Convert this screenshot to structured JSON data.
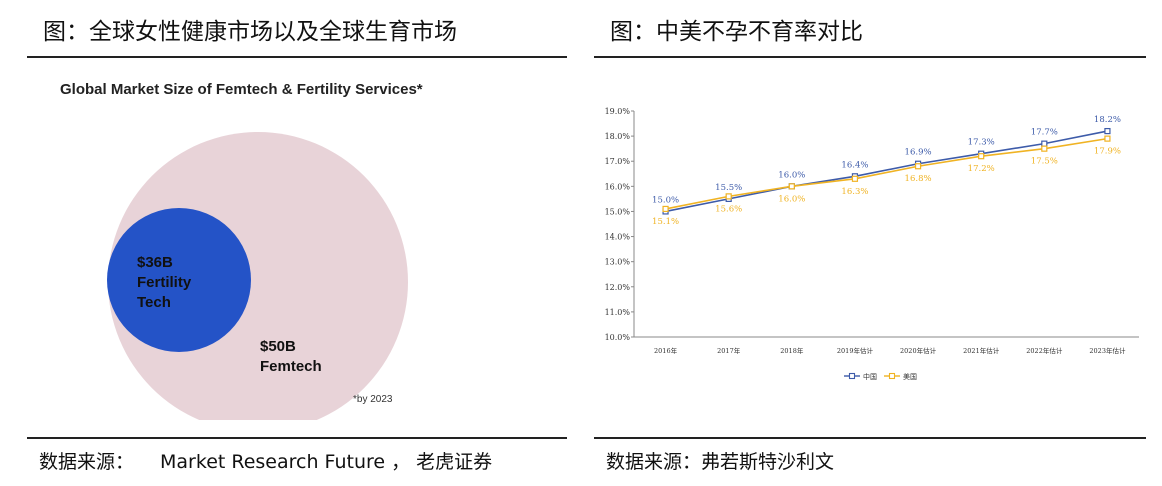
{
  "left_panel": {
    "title": "图：全球女性健康市场以及全球生育市场",
    "source_label": "数据来源：",
    "source_value": "Market Research Future ， 老虎证券"
  },
  "right_panel": {
    "title": "图：中美不孕不育率对比",
    "source_label": "数据来源：",
    "source_value": "弗若斯特沙利文"
  },
  "chart_data": [
    {
      "type": "bubble",
      "title": "Global Market Size of Femtech & Fertility Services*",
      "items": [
        {
          "label_value": "$50B",
          "label_name": "Femtech",
          "value": 50,
          "color": "#e8d3d8"
        },
        {
          "label_value": "$36B",
          "label_name": "Fertility Tech",
          "value": 36,
          "color": "#2453c7"
        }
      ],
      "footnote": "*by 2023"
    },
    {
      "type": "line",
      "categories": [
        "2016年",
        "2017年",
        "2018年",
        "2019年估计",
        "2020年估计",
        "2021年估计",
        "2022年估计",
        "2023年估计"
      ],
      "ylim": [
        10.0,
        19.0
      ],
      "yticks": [
        "10.0%",
        "11.0%",
        "12.0%",
        "13.0%",
        "14.0%",
        "15.0%",
        "16.0%",
        "17.0%",
        "18.0%",
        "19.0%"
      ],
      "series": [
        {
          "name": "中国",
          "color": "#3d5ba9",
          "values": [
            15.0,
            15.5,
            16.0,
            16.4,
            16.9,
            17.3,
            17.7,
            18.2
          ],
          "labels": [
            "15.0%",
            "15.5%",
            "16.0%",
            "16.4%",
            "16.9%",
            "17.3%",
            "17.7%",
            "18.2%"
          ]
        },
        {
          "name": "美国",
          "color": "#f0b323",
          "values": [
            15.1,
            15.6,
            16.0,
            16.3,
            16.8,
            17.2,
            17.5,
            17.9
          ],
          "labels": [
            "15.1%",
            "15.6%",
            "16.0%",
            "16.3%",
            "16.8%",
            "17.2%",
            "17.5%",
            "17.9%"
          ]
        }
      ],
      "legend": "bottom-center",
      "grid": false
    }
  ]
}
